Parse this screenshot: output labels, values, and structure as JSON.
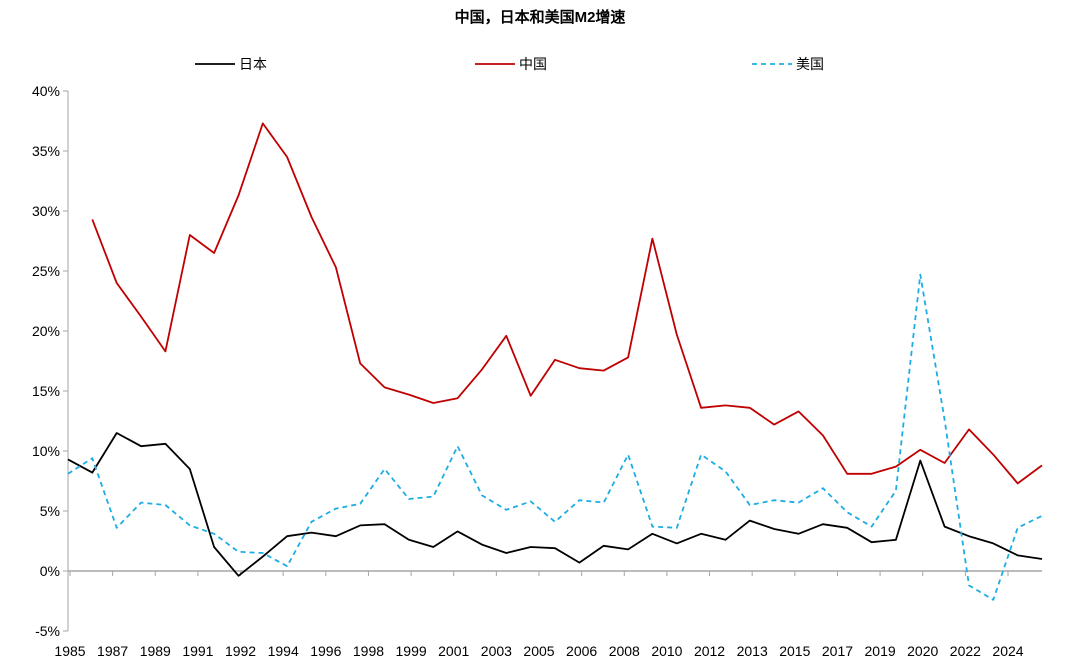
{
  "chart_data": {
    "type": "line",
    "title": "中国，日本和美国M2增速",
    "xlabel": "",
    "ylabel": "",
    "ylim": [
      -5,
      40
    ],
    "yticks": [
      "-5%",
      "0%",
      "5%",
      "10%",
      "15%",
      "20%",
      "25%",
      "30%",
      "35%",
      "40%"
    ],
    "xtick_labels": [
      "1985",
      "1987",
      "1989",
      "1991",
      "1992",
      "1994",
      "1996",
      "1998",
      "1999",
      "2001",
      "2003",
      "2005",
      "2006",
      "2008",
      "2010",
      "2012",
      "2013",
      "2015",
      "2017",
      "2019",
      "2020",
      "2022",
      "2024"
    ],
    "x": [
      1985,
      1986,
      1987,
      1988,
      1989,
      1990,
      1991,
      1992,
      1993,
      1994,
      1995,
      1996,
      1997,
      1998,
      1999,
      2000,
      2001,
      2002,
      2003,
      2004,
      2005,
      2006,
      2007,
      2008,
      2009,
      2010,
      2011,
      2012,
      2013,
      2014,
      2015,
      2016,
      2017,
      2018,
      2019,
      2020,
      2021,
      2022,
      2023,
      2024,
      2025
    ],
    "grid": false,
    "legend_position": "top",
    "series": [
      {
        "name": "日本",
        "color": "#000000",
        "dash": false,
        "values": [
          9.3,
          8.2,
          11.5,
          10.4,
          10.6,
          8.5,
          2.0,
          -0.4,
          1.2,
          2.9,
          3.2,
          2.9,
          3.8,
          3.9,
          2.6,
          2.0,
          3.3,
          2.2,
          1.5,
          2.0,
          1.9,
          0.7,
          2.1,
          1.8,
          3.1,
          2.3,
          3.1,
          2.6,
          4.2,
          3.5,
          3.1,
          3.9,
          3.6,
          2.4,
          2.6,
          9.2,
          3.7,
          2.9,
          2.3,
          1.3,
          1.0
        ]
      },
      {
        "name": "中国",
        "color": "#C00000",
        "dash": false,
        "values": [
          null,
          29.3,
          24.0,
          21.2,
          18.3,
          28.0,
          26.5,
          31.3,
          37.3,
          34.5,
          29.5,
          25.3,
          17.3,
          15.3,
          14.7,
          14.0,
          14.4,
          16.8,
          19.6,
          14.6,
          17.6,
          16.9,
          16.7,
          17.8,
          27.7,
          19.7,
          13.6,
          13.8,
          13.6,
          12.2,
          13.3,
          11.3,
          8.1,
          8.1,
          8.7,
          10.1,
          9.0,
          11.8,
          9.7,
          7.3,
          8.8
        ]
      },
      {
        "name": "美国",
        "color": "#1CADE4",
        "dash": true,
        "values": [
          8.1,
          9.4,
          3.6,
          5.7,
          5.5,
          3.8,
          3.1,
          1.6,
          1.5,
          0.4,
          4.1,
          5.2,
          5.6,
          8.5,
          6.0,
          6.2,
          10.4,
          6.3,
          5.1,
          5.8,
          4.1,
          5.9,
          5.7,
          9.7,
          3.7,
          3.6,
          9.7,
          8.3,
          5.5,
          5.9,
          5.7,
          6.9,
          4.9,
          3.7,
          6.7,
          24.7,
          12.6,
          -1.2,
          -2.4,
          3.6,
          4.6
        ]
      }
    ]
  }
}
